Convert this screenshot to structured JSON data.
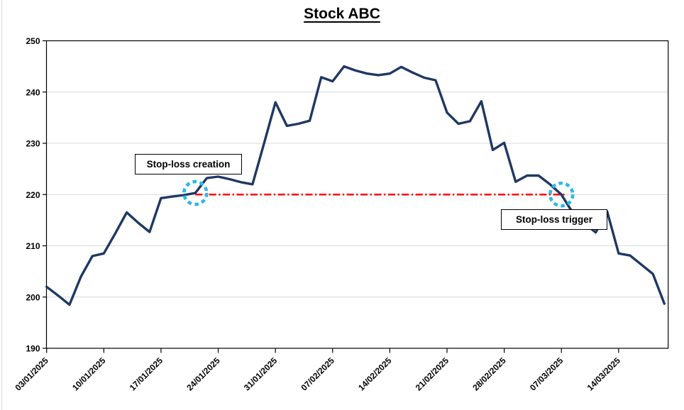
{
  "title": "Stock ABC",
  "annotations": {
    "creation": "Stop-loss creation",
    "trigger": "Stop-loss trigger"
  },
  "colors": {
    "price_line": "#1f3864",
    "stop_loss_line": "#ff0000",
    "marker": "#2eb8e8",
    "gridline": "#d9d9d9",
    "axis": "#000000",
    "background": "#ffffff"
  },
  "chart_data": {
    "type": "line",
    "title": "Stock ABC",
    "series_name": "Stock ABC price",
    "xlabel": "",
    "ylabel": "",
    "ylim": [
      190,
      250
    ],
    "y_ticks": [
      190,
      200,
      210,
      220,
      230,
      240,
      250
    ],
    "grid": true,
    "legend": "none",
    "x_tick_labels": [
      "03/01/2025",
      "10/01/2025",
      "17/01/2025",
      "24/01/2025",
      "31/01/2025",
      "07/02/2025",
      "14/02/2025",
      "21/02/2025",
      "28/02/2025",
      "07/03/2025",
      "14/03/2025"
    ],
    "x_tick_day_indices": [
      0,
      5,
      10,
      15,
      20,
      25,
      30,
      35,
      40,
      45,
      50
    ],
    "dates": [
      "03/01/2025",
      "06/01/2025",
      "07/01/2025",
      "08/01/2025",
      "09/01/2025",
      "10/01/2025",
      "13/01/2025",
      "14/01/2025",
      "15/01/2025",
      "16/01/2025",
      "17/01/2025",
      "20/01/2025",
      "21/01/2025",
      "22/01/2025",
      "23/01/2025",
      "24/01/2025",
      "27/01/2025",
      "28/01/2025",
      "29/01/2025",
      "30/01/2025",
      "31/01/2025",
      "03/02/2025",
      "04/02/2025",
      "05/02/2025",
      "06/02/2025",
      "07/02/2025",
      "10/02/2025",
      "11/02/2025",
      "12/02/2025",
      "13/02/2025",
      "14/02/2025",
      "17/02/2025",
      "18/02/2025",
      "19/02/2025",
      "20/02/2025",
      "21/02/2025",
      "24/02/2025",
      "25/02/2025",
      "26/02/2025",
      "27/02/2025",
      "28/02/2025",
      "03/03/2025",
      "04/03/2025",
      "05/03/2025",
      "06/03/2025",
      "07/03/2025",
      "10/03/2025",
      "11/03/2025",
      "12/03/2025",
      "13/03/2025",
      "14/03/2025",
      "17/03/2025",
      "18/03/2025",
      "19/03/2025",
      "20/03/2025"
    ],
    "values": [
      202,
      200.3,
      198.5,
      204,
      208,
      208.5,
      212.4,
      216.5,
      214.5,
      212.7,
      219.3,
      219.6,
      219.9,
      220.3,
      223.2,
      223.5,
      223,
      222.4,
      222,
      229.9,
      238,
      233.4,
      233.8,
      234.4,
      242.9,
      242.1,
      245,
      244.2,
      243.6,
      243.3,
      243.6,
      244.9,
      243.8,
      242.8,
      242.3,
      236,
      233.8,
      234.3,
      238.2,
      228.7,
      230.1,
      222.5,
      223.7,
      223.7,
      222,
      220,
      216.4,
      214.4,
      212.6,
      216.7,
      208.5,
      208.1,
      206.3,
      204.5,
      198.7
    ],
    "stop_loss_level": 220,
    "stop_loss_day_span": [
      13,
      45
    ],
    "marker_day_indices": [
      13,
      45
    ],
    "marker_points": [
      {
        "label": "Stop-loss creation",
        "date": "22/01/2025",
        "value": 220.3
      },
      {
        "label": "Stop-loss trigger",
        "date": "07/03/2025",
        "value": 220
      }
    ]
  }
}
